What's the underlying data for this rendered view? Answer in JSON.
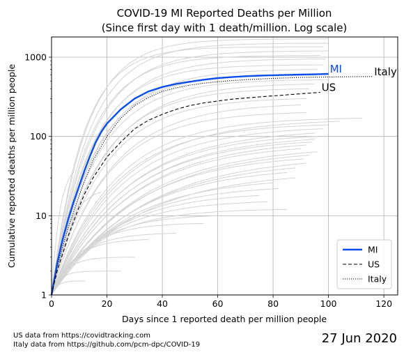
{
  "chart_data": {
    "type": "line",
    "title": "COVID-19 MI Reported Deaths per Million",
    "subtitle": "(Since first day with 1 death/million. Log scale)",
    "xlabel": "Days since 1 reported death per million people",
    "ylabel": "Cumulative reported deaths per million people",
    "xlim": [
      0,
      125
    ],
    "ylim": [
      1,
      1800
    ],
    "yscale": "log",
    "grid": true,
    "legend_position": "bottom-right",
    "x_ticks": [
      0,
      20,
      40,
      60,
      80,
      100,
      120
    ],
    "y_ticks": [
      1,
      10,
      100,
      1000
    ],
    "x_tick_labels": [
      "0",
      "20",
      "40",
      "60",
      "80",
      "100",
      "120"
    ],
    "y_tick_labels": [
      "1",
      "10",
      "100",
      "1000"
    ],
    "series": [
      {
        "name": "MI",
        "color": "#0a4ded",
        "style": "solid",
        "label_text": "MI",
        "x": [
          0,
          2,
          4,
          6,
          8,
          10,
          12,
          14,
          16,
          18,
          20,
          25,
          30,
          35,
          40,
          45,
          50,
          55,
          60,
          65,
          70,
          75,
          80,
          85,
          90,
          95,
          100
        ],
        "y": [
          1,
          2.5,
          5,
          9,
          15,
          24,
          38,
          58,
          85,
          115,
          145,
          220,
          300,
          370,
          420,
          460,
          490,
          520,
          545,
          560,
          575,
          585,
          592,
          598,
          603,
          608,
          615
        ]
      },
      {
        "name": "US",
        "color": "#000000",
        "style": "dashed",
        "label_text": "US",
        "x": [
          0,
          2,
          4,
          6,
          8,
          10,
          12,
          15,
          20,
          25,
          30,
          35,
          40,
          45,
          50,
          55,
          60,
          65,
          70,
          75,
          80,
          85,
          90,
          97
        ],
        "y": [
          1,
          2,
          3.3,
          5.5,
          8.5,
          13,
          19,
          30,
          55,
          85,
          125,
          160,
          190,
          220,
          245,
          265,
          280,
          295,
          305,
          315,
          325,
          335,
          345,
          360
        ]
      },
      {
        "name": "Italy",
        "color": "#000000",
        "style": "dotted",
        "label_text": "Italy",
        "x": [
          0,
          2,
          4,
          6,
          8,
          10,
          12,
          15,
          20,
          25,
          30,
          35,
          40,
          45,
          50,
          55,
          60,
          65,
          70,
          80,
          90,
          100,
          110,
          116
        ],
        "y": [
          1,
          2.2,
          4,
          7,
          11,
          18,
          28,
          50,
          100,
          170,
          245,
          310,
          370,
          410,
          445,
          470,
          490,
          505,
          520,
          540,
          555,
          563,
          568,
          570
        ]
      }
    ]
  },
  "footer": {
    "source_us": "US data from https://covidtracking.com",
    "source_italy": "Italy data from https://github.com/pcm-dpc/COVID-19",
    "date": "27 Jun 2020"
  },
  "background_style": {
    "color": "#d3d3d3",
    "curves": [
      {
        "final": 1700,
        "days": 100,
        "k": 12
      },
      {
        "final": 1500,
        "days": 100,
        "k": 13
      },
      {
        "final": 1350,
        "days": 98,
        "k": 11
      },
      {
        "final": 1200,
        "days": 100,
        "k": 14
      },
      {
        "final": 1050,
        "days": 97,
        "k": 13
      },
      {
        "final": 950,
        "days": 99,
        "k": 15
      },
      {
        "final": 800,
        "days": 98,
        "k": 14
      },
      {
        "final": 700,
        "days": 96,
        "k": 16
      },
      {
        "final": 600,
        "days": 95,
        "k": 15
      },
      {
        "final": 520,
        "days": 100,
        "k": 16
      },
      {
        "final": 460,
        "days": 95,
        "k": 18
      },
      {
        "final": 400,
        "days": 93,
        "k": 17
      },
      {
        "final": 300,
        "days": 92,
        "k": 18
      },
      {
        "final": 250,
        "days": 90,
        "k": 20
      },
      {
        "final": 200,
        "days": 92,
        "k": 19
      },
      {
        "final": 170,
        "days": 112,
        "k": 22
      },
      {
        "final": 155,
        "days": 104,
        "k": 24
      },
      {
        "final": 140,
        "days": 100,
        "k": 22
      },
      {
        "final": 125,
        "days": 98,
        "k": 24
      },
      {
        "final": 110,
        "days": 95,
        "k": 26
      },
      {
        "final": 100,
        "days": 96,
        "k": 25
      },
      {
        "final": 92,
        "days": 95,
        "k": 27
      },
      {
        "final": 85,
        "days": 94,
        "k": 26
      },
      {
        "final": 78,
        "days": 92,
        "k": 28
      },
      {
        "final": 70,
        "days": 90,
        "k": 27
      },
      {
        "final": 64,
        "days": 96,
        "k": 30
      },
      {
        "final": 58,
        "days": 93,
        "k": 30
      },
      {
        "final": 52,
        "days": 91,
        "k": 28
      },
      {
        "final": 46,
        "days": 92,
        "k": 32
      },
      {
        "final": 40,
        "days": 88,
        "k": 30
      },
      {
        "final": 35,
        "days": 85,
        "k": 28
      },
      {
        "final": 30,
        "days": 88,
        "k": 30
      },
      {
        "final": 26,
        "days": 80,
        "k": 26
      },
      {
        "final": 22,
        "days": 82,
        "k": 24
      },
      {
        "final": 18,
        "days": 75,
        "k": 22
      },
      {
        "final": 15,
        "days": 78,
        "k": 20
      },
      {
        "final": 12,
        "days": 85,
        "k": 18
      },
      {
        "final": 10,
        "days": 60,
        "k": 15
      },
      {
        "final": 8,
        "days": 55,
        "k": 12
      },
      {
        "final": 6,
        "days": 45,
        "k": 10
      },
      {
        "final": 5,
        "days": 35,
        "k": 8
      },
      {
        "final": 3,
        "days": 30,
        "k": 5
      },
      {
        "final": 2,
        "days": 25,
        "k": 3
      },
      {
        "final": 1.5,
        "days": 12,
        "k": 2
      },
      {
        "final": 36,
        "days": 8,
        "k": 3
      },
      {
        "final": 20,
        "days": 18,
        "k": 6
      }
    ]
  }
}
